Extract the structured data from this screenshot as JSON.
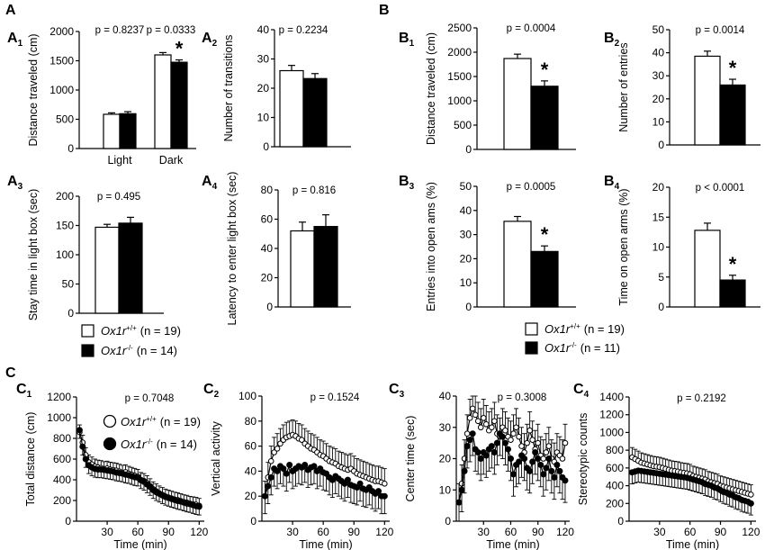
{
  "panel_letters": {
    "A": "A",
    "B": "B",
    "C": "C"
  },
  "legend_A": {
    "wt_gene": "Ox1r",
    "wt_sup": "+/+",
    "wt_n": "(n = 19)",
    "ko_gene": "Ox1r",
    "ko_sup": "-/-",
    "ko_n": "(n = 14)"
  },
  "legend_B": {
    "wt_gene": "Ox1r",
    "wt_sup": "+/+",
    "wt_n": "(n = 19)",
    "ko_gene": "Ox1r",
    "ko_sup": "-/-",
    "ko_n": "(n = 11)"
  },
  "legend_C": {
    "wt_gene": "Ox1r",
    "wt_sup": "+/+",
    "wt_n": "(n = 19)",
    "ko_gene": "Ox1r",
    "ko_sup": "-/-",
    "ko_n": "(n = 14)"
  },
  "chart_data": [
    {
      "id": "A1",
      "label": "A",
      "sub": "1",
      "type": "bar",
      "ylabel": "Distance traveled (cm)",
      "ylim": [
        0,
        2000
      ],
      "yticks": [
        0,
        500,
        1000,
        1500,
        2000
      ],
      "categories": [
        "Light",
        "Dark"
      ],
      "pvalues": [
        "p = 0.8237",
        "p = 0.0333"
      ],
      "star_labels": [
        "",
        "*"
      ],
      "series": [
        {
          "name": "Ox1r+/+",
          "values": [
            585,
            1600
          ],
          "errors": [
            25,
            40
          ]
        },
        {
          "name": "Ox1r-/-",
          "values": [
            595,
            1475
          ],
          "errors": [
            35,
            40
          ]
        }
      ]
    },
    {
      "id": "A2",
      "label": "A",
      "sub": "2",
      "type": "bar",
      "ylabel": "Number of transitions",
      "ylim": [
        0,
        40
      ],
      "yticks": [
        0,
        10,
        20,
        30,
        40
      ],
      "categories": [
        ""
      ],
      "pvalues": [
        "p = 0.2234"
      ],
      "star_labels": [
        ""
      ],
      "series": [
        {
          "name": "Ox1r+/+",
          "values": [
            26
          ],
          "errors": [
            1.8
          ]
        },
        {
          "name": "Ox1r-/-",
          "values": [
            23.3
          ],
          "errors": [
            1.7
          ]
        }
      ]
    },
    {
      "id": "A3",
      "label": "A",
      "sub": "3",
      "type": "bar",
      "ylabel": "Stay time in light box (sec)",
      "ylim": [
        0,
        200
      ],
      "yticks": [
        0,
        50,
        100,
        150,
        200
      ],
      "categories": [
        ""
      ],
      "pvalues": [
        "p = 0.495"
      ],
      "star_labels": [
        ""
      ],
      "series": [
        {
          "name": "Ox1r+/+",
          "values": [
            147
          ],
          "errors": [
            5
          ]
        },
        {
          "name": "Ox1r-/-",
          "values": [
            154
          ],
          "errors": [
            10
          ]
        }
      ]
    },
    {
      "id": "A4",
      "label": "A",
      "sub": "4",
      "type": "bar",
      "ylabel": "Latency to enter light box (sec)",
      "ylim": [
        0,
        80
      ],
      "yticks": [
        0,
        20,
        40,
        60,
        80
      ],
      "categories": [
        ""
      ],
      "pvalues": [
        "p = 0.816"
      ],
      "star_labels": [
        ""
      ],
      "series": [
        {
          "name": "Ox1r+/+",
          "values": [
            52
          ],
          "errors": [
            6
          ]
        },
        {
          "name": "Ox1r-/-",
          "values": [
            55
          ],
          "errors": [
            8
          ]
        }
      ]
    },
    {
      "id": "B1",
      "label": "B",
      "sub": "1",
      "type": "bar",
      "ylabel": "Distance traveled (cm)",
      "ylim": [
        0,
        2500
      ],
      "yticks": [
        0,
        500,
        1000,
        1500,
        2000,
        2500
      ],
      "categories": [
        ""
      ],
      "pvalues": [
        "p = 0.0004"
      ],
      "star_labels": [
        "*"
      ],
      "series": [
        {
          "name": "Ox1r+/+",
          "values": [
            1870
          ],
          "errors": [
            90
          ]
        },
        {
          "name": "Ox1r-/-",
          "values": [
            1300
          ],
          "errors": [
            110
          ]
        }
      ]
    },
    {
      "id": "B2",
      "label": "B",
      "sub": "2",
      "type": "bar",
      "ylabel": "Number of entries",
      "ylim": [
        0,
        50
      ],
      "yticks": [
        0,
        10,
        20,
        30,
        40,
        50
      ],
      "categories": [
        ""
      ],
      "pvalues": [
        "p = 0.0014"
      ],
      "star_labels": [
        "*"
      ],
      "series": [
        {
          "name": "Ox1r+/+",
          "values": [
            38.5
          ],
          "errors": [
            2.2
          ]
        },
        {
          "name": "Ox1r-/-",
          "values": [
            26
          ],
          "errors": [
            2.5
          ]
        }
      ]
    },
    {
      "id": "B3",
      "label": "B",
      "sub": "3",
      "type": "bar",
      "ylabel": "Entries into open ams (%)",
      "ylim": [
        0,
        50
      ],
      "yticks": [
        0,
        10,
        20,
        30,
        40,
        50
      ],
      "categories": [
        ""
      ],
      "pvalues": [
        "p = 0.0005"
      ],
      "star_labels": [
        "*"
      ],
      "series": [
        {
          "name": "Ox1r+/+",
          "values": [
            35.5
          ],
          "errors": [
            2
          ]
        },
        {
          "name": "Ox1r-/-",
          "values": [
            23
          ],
          "errors": [
            2.3
          ]
        }
      ]
    },
    {
      "id": "B4",
      "label": "B",
      "sub": "4",
      "type": "bar",
      "ylabel": "Time on open arms (%)",
      "ylim": [
        0,
        20
      ],
      "yticks": [
        0,
        5,
        10,
        15,
        20
      ],
      "categories": [
        ""
      ],
      "pvalues": [
        "p < 0.0001"
      ],
      "star_labels": [
        "*"
      ],
      "series": [
        {
          "name": "Ox1r+/+",
          "values": [
            12.8
          ],
          "errors": [
            1.2
          ]
        },
        {
          "name": "Ox1r-/-",
          "values": [
            4.5
          ],
          "errors": [
            0.8
          ]
        }
      ]
    },
    {
      "id": "C1",
      "label": "C",
      "sub": "1",
      "type": "line",
      "ylabel": "Total distance (cm)",
      "xlabel": "Time (min)",
      "ylim": [
        0,
        1200
      ],
      "yticks": [
        0,
        200,
        400,
        600,
        800,
        1000,
        1200
      ],
      "xlim": [
        0,
        125
      ],
      "xticks": [
        30,
        60,
        90,
        120
      ],
      "pvalue": "p = 0.7048",
      "x": [
        3,
        6,
        9,
        12,
        15,
        18,
        21,
        24,
        27,
        30,
        33,
        36,
        39,
        42,
        45,
        48,
        51,
        54,
        57,
        60,
        63,
        66,
        69,
        72,
        75,
        78,
        81,
        84,
        87,
        90,
        93,
        96,
        99,
        102,
        105,
        108,
        111,
        114,
        117,
        120
      ],
      "series": [
        {
          "name": "Ox1r+/+",
          "marker": "open",
          "err": 70,
          "values": [
            860,
            760,
            640,
            570,
            550,
            530,
            520,
            515,
            505,
            510,
            500,
            495,
            490,
            480,
            470,
            475,
            460,
            450,
            440,
            430,
            400,
            390,
            370,
            340,
            310,
            290,
            270,
            255,
            240,
            230,
            220,
            210,
            205,
            195,
            185,
            180,
            170,
            165,
            160,
            150
          ]
        },
        {
          "name": "Ox1r-/-",
          "marker": "filled",
          "err": 80,
          "values": [
            880,
            720,
            600,
            540,
            520,
            505,
            500,
            500,
            495,
            490,
            485,
            480,
            470,
            465,
            460,
            450,
            445,
            435,
            425,
            420,
            395,
            380,
            355,
            330,
            300,
            280,
            265,
            250,
            235,
            225,
            215,
            205,
            195,
            190,
            180,
            170,
            165,
            155,
            145,
            140
          ]
        }
      ]
    },
    {
      "id": "C2",
      "label": "C",
      "sub": "2",
      "type": "line",
      "ylabel": "Vertical activity",
      "xlabel": "Time (min)",
      "ylim": [
        0,
        100
      ],
      "yticks": [
        0,
        20,
        40,
        60,
        80,
        100
      ],
      "xlim": [
        0,
        125
      ],
      "xticks": [
        30,
        60,
        90,
        120
      ],
      "pvalue": "p = 0.1524",
      "x": [
        3,
        6,
        9,
        12,
        15,
        18,
        21,
        24,
        27,
        30,
        33,
        36,
        39,
        42,
        45,
        48,
        51,
        54,
        57,
        60,
        63,
        66,
        69,
        72,
        75,
        78,
        81,
        84,
        87,
        90,
        93,
        96,
        99,
        102,
        105,
        108,
        111,
        114,
        117,
        120
      ],
      "series": [
        {
          "name": "Ox1r+/+",
          "marker": "open",
          "err": 12,
          "values": [
            20,
            35,
            48,
            55,
            58,
            62,
            65,
            67,
            68,
            69,
            68,
            66,
            65,
            62,
            60,
            58,
            57,
            55,
            53,
            52,
            50,
            48,
            47,
            46,
            44,
            43,
            42,
            41,
            42,
            40,
            38,
            37,
            36,
            35,
            34,
            33,
            32,
            32,
            31,
            30
          ]
        },
        {
          "name": "Ox1r-/-",
          "marker": "filled",
          "err": 14,
          "values": [
            20,
            28,
            35,
            42,
            40,
            44,
            42,
            38,
            45,
            40,
            42,
            44,
            43,
            45,
            41,
            43,
            44,
            40,
            42,
            39,
            38,
            35,
            33,
            36,
            34,
            32,
            30,
            33,
            29,
            28,
            27,
            30,
            26,
            25,
            27,
            24,
            22,
            24,
            20,
            20
          ]
        }
      ]
    },
    {
      "id": "C3",
      "label": "C",
      "sub": "3",
      "type": "line",
      "ylabel": "Center time (sec)",
      "xlabel": "Time (min)",
      "ylim": [
        0,
        40
      ],
      "yticks": [
        0,
        10,
        20,
        30,
        40
      ],
      "xlim": [
        0,
        125
      ],
      "xticks": [
        30,
        60,
        90,
        120
      ],
      "pvalue": "p = 0.3008",
      "x": [
        3,
        6,
        9,
        12,
        15,
        18,
        21,
        24,
        27,
        30,
        33,
        36,
        39,
        42,
        45,
        48,
        51,
        54,
        57,
        60,
        63,
        66,
        69,
        72,
        75,
        78,
        81,
        84,
        87,
        90,
        93,
        96,
        99,
        102,
        105,
        108,
        111,
        114,
        117,
        120
      ],
      "series": [
        {
          "name": "Ox1r+/+",
          "marker": "open",
          "err": 6,
          "values": [
            6,
            12,
            20,
            28,
            33,
            36,
            34,
            32,
            30,
            33,
            31,
            29,
            30,
            32,
            28,
            27,
            30,
            29,
            27,
            26,
            28,
            30,
            27,
            24,
            22,
            25,
            29,
            26,
            23,
            25,
            21,
            20,
            22,
            24,
            20,
            19,
            22,
            21,
            20,
            25
          ]
        },
        {
          "name": "Ox1r-/-",
          "marker": "filled",
          "err": 7,
          "values": [
            6,
            10,
            16,
            24,
            26,
            28,
            23,
            22,
            20,
            22,
            21,
            23,
            24,
            22,
            25,
            28,
            27,
            25,
            23,
            20,
            15,
            18,
            19,
            21,
            20,
            17,
            16,
            19,
            22,
            20,
            18,
            15,
            17,
            20,
            16,
            14,
            18,
            16,
            14,
            13
          ]
        }
      ]
    },
    {
      "id": "C4",
      "label": "C",
      "sub": "4",
      "type": "line",
      "ylabel": "Stereotypic counts",
      "xlabel": "Time (min)",
      "ylim": [
        0,
        1400
      ],
      "yticks": [
        0,
        200,
        400,
        600,
        800,
        1000,
        1200,
        1400
      ],
      "xlim": [
        0,
        125
      ],
      "xticks": [
        30,
        60,
        90,
        120
      ],
      "pvalue": "p = 0.2192",
      "x": [
        3,
        6,
        9,
        12,
        15,
        18,
        21,
        24,
        27,
        30,
        33,
        36,
        39,
        42,
        45,
        48,
        51,
        54,
        57,
        60,
        63,
        66,
        69,
        72,
        75,
        78,
        81,
        84,
        87,
        90,
        93,
        96,
        99,
        102,
        105,
        108,
        111,
        114,
        117,
        120
      ],
      "series": [
        {
          "name": "Ox1r+/+",
          "marker": "open",
          "err": 110,
          "values": [
            720,
            700,
            680,
            660,
            650,
            640,
            630,
            620,
            615,
            610,
            600,
            590,
            580,
            570,
            565,
            560,
            550,
            545,
            540,
            530,
            510,
            500,
            490,
            480,
            470,
            450,
            440,
            430,
            420,
            400,
            390,
            380,
            370,
            360,
            350,
            340,
            330,
            320,
            310,
            300
          ]
        },
        {
          "name": "Ox1r-/-",
          "marker": "filled",
          "err": 130,
          "values": [
            550,
            560,
            570,
            565,
            560,
            555,
            550,
            545,
            540,
            535,
            530,
            525,
            520,
            515,
            510,
            505,
            500,
            495,
            490,
            480,
            470,
            460,
            450,
            440,
            420,
            410,
            400,
            380,
            370,
            350,
            330,
            320,
            300,
            290,
            270,
            260,
            240,
            230,
            220,
            200
          ]
        }
      ]
    }
  ]
}
